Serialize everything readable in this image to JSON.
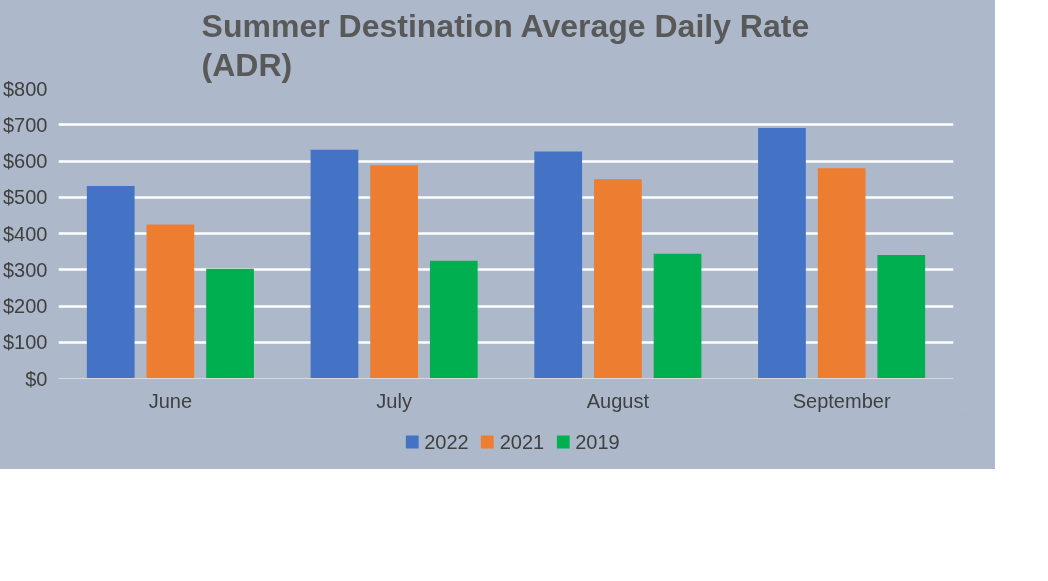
{
  "chart_data": {
    "type": "bar",
    "title": "Summer Destination Average Daily Rate (ADR)",
    "categories": [
      "June",
      "July",
      "August",
      "September"
    ],
    "series": [
      {
        "name": "2022",
        "color": "#4472c4",
        "values": [
          531,
          631,
          626,
          691
        ]
      },
      {
        "name": "2021",
        "color": "#ed7d31",
        "values": [
          425,
          588,
          550,
          580
        ]
      },
      {
        "name": "2019",
        "color": "#00b050",
        "values": [
          303,
          325,
          344,
          341
        ]
      }
    ],
    "ylim": [
      0,
      800
    ],
    "yticks": [
      {
        "value": 0,
        "label": "$0"
      },
      {
        "value": 100,
        "label": "$100"
      },
      {
        "value": 200,
        "label": "$200"
      },
      {
        "value": 300,
        "label": "$300"
      },
      {
        "value": 400,
        "label": "$400"
      },
      {
        "value": 500,
        "label": "$500"
      },
      {
        "value": 600,
        "label": "$600"
      },
      {
        "value": 700,
        "label": "$700"
      },
      {
        "value": 800,
        "label": "$800"
      }
    ],
    "grid": "y",
    "legend": "bottom"
  }
}
